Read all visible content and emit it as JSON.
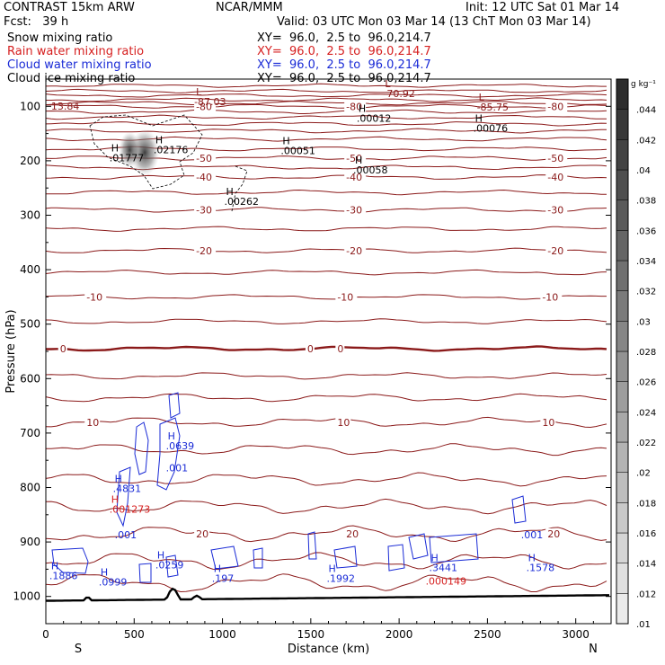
{
  "header": {
    "model": "CONTRAST 15km ARW",
    "center": "NCAR/MMM",
    "init": "Init: 12 UTC Sat 01 Mar 14",
    "fcst": "Fcst:   39 h",
    "valid": "Valid: 03 UTC Mon 03 Mar 14 (13 ChT Mon 03 Mar 14)",
    "fields": [
      {
        "label": "Snow mixing ratio",
        "xy": "XY=  96.0,  2.5 to  96.0,214.7",
        "color": "#000000"
      },
      {
        "label": "Rain water mixing ratio",
        "xy": "XY=  96.0,  2.5 to  96.0,214.7",
        "color": "#d62020"
      },
      {
        "label": "Cloud water mixing ratio",
        "xy": "XY=  96.0,  2.5 to  96.0,214.7",
        "color": "#1a2bd6"
      },
      {
        "label": "Cloud ice mixing ratio",
        "xy": "XY=  96.0,  2.5 to  96.0,214.7",
        "color": "#000000"
      }
    ]
  },
  "chart_data": {
    "type": "contour",
    "xlabel": "Distance (km)",
    "ylabel": "Pressure (hPa)",
    "xlim": [
      0,
      3200
    ],
    "ylim": [
      1050,
      50
    ],
    "x_ticks": [
      0,
      500,
      1000,
      1500,
      2000,
      2500,
      3000
    ],
    "y_ticks": [
      100,
      200,
      300,
      400,
      500,
      600,
      700,
      800,
      900,
      1000
    ],
    "x_end_labels": {
      "left": "S",
      "right": "N"
    },
    "temperature_contours": [
      {
        "label": "-80",
        "p": 100
      },
      {
        "label": "-50",
        "p": 195
      },
      {
        "label": "-40",
        "p": 230
      },
      {
        "label": "-30",
        "p": 290
      },
      {
        "label": "-20",
        "p": 365
      },
      {
        "label": "-10",
        "p": 450
      },
      {
        "label": "0",
        "p": 545
      },
      {
        "label": "10",
        "p": 680
      },
      {
        "label": "20",
        "p": 885
      }
    ],
    "extrema_labels": [
      {
        "kind": "L",
        "value": "-87.03",
        "x": 850,
        "p": 80,
        "color": "#8b1a1a"
      },
      {
        "kind": "L",
        "value": "-70.92",
        "x": 1920,
        "p": 65,
        "color": "#8b1a1a"
      },
      {
        "kind": "L",
        "value": "-85.75",
        "x": 2450,
        "p": 90,
        "color": "#8b1a1a"
      },
      {
        "kind": "",
        "value": "13.84",
        "x": 40,
        "p": 88,
        "color": "#8b1a1a"
      },
      {
        "kind": "H",
        "value": ".00012",
        "x": 1770,
        "p": 110,
        "color": "#000000"
      },
      {
        "kind": "H",
        "value": ".00076",
        "x": 2430,
        "p": 128,
        "color": "#000000"
      },
      {
        "kind": "H",
        "value": ".00051",
        "x": 1340,
        "p": 170,
        "color": "#000000"
      },
      {
        "kind": "H",
        "value": ".00058",
        "x": 1750,
        "p": 205,
        "color": "#000000"
      },
      {
        "kind": "H",
        "value": ".02176",
        "x": 620,
        "p": 168,
        "color": "#000000"
      },
      {
        "kind": "H",
        "value": ".01777",
        "x": 370,
        "p": 183,
        "color": "#000000"
      },
      {
        "kind": "H",
        "value": ".00262",
        "x": 1020,
        "p": 263,
        "color": "#000000"
      },
      {
        "kind": "H",
        "value": ".0639",
        "x": 690,
        "p": 712,
        "color": "#1a2bd6"
      },
      {
        "kind": "",
        "value": ".001",
        "x": 690,
        "p": 752,
        "color": "#1a2bd6"
      },
      {
        "kind": "H",
        "value": ".4831",
        "x": 390,
        "p": 790,
        "color": "#1a2bd6"
      },
      {
        "kind": "H",
        "value": ".001273",
        "x": 370,
        "p": 828,
        "color": "#d62020"
      },
      {
        "kind": "",
        "value": ".001",
        "x": 400,
        "p": 875,
        "color": "#1a2bd6"
      },
      {
        "kind": "H",
        "value": ".0259",
        "x": 630,
        "p": 930,
        "color": "#1a2bd6"
      },
      {
        "kind": "H",
        "value": ".1886",
        "x": 30,
        "p": 950,
        "color": "#1a2bd6"
      },
      {
        "kind": "H",
        "value": ".0999",
        "x": 310,
        "p": 962,
        "color": "#1a2bd6"
      },
      {
        "kind": "H",
        "value": ".197",
        "x": 950,
        "p": 955,
        "color": "#1a2bd6"
      },
      {
        "kind": "H",
        "value": ".1992",
        "x": 1600,
        "p": 955,
        "color": "#1a2bd6"
      },
      {
        "kind": "H",
        "value": ".3441",
        "x": 2180,
        "p": 935,
        "color": "#1a2bd6"
      },
      {
        "kind": "",
        "value": ".000149",
        "x": 2160,
        "p": 960,
        "color": "#d62020"
      },
      {
        "kind": "",
        "value": ".001",
        "x": 2700,
        "p": 875,
        "color": "#1a2bd6"
      },
      {
        "kind": "H",
        "value": ".1578",
        "x": 2730,
        "p": 935,
        "color": "#1a2bd6"
      }
    ],
    "grayscale_legend": {
      "unit": "g kg⁻¹",
      "levels": [
        ".01",
        ".012",
        ".014",
        ".016",
        ".018",
        ".02",
        ".022",
        ".024",
        ".026",
        ".028",
        ".03",
        ".032",
        ".034",
        ".036",
        ".038",
        ".04",
        ".042",
        ".044"
      ]
    }
  },
  "colors": {
    "temperature": "#8b1a1a",
    "cloud_water": "#1a2bd6",
    "rain": "#d62020",
    "terrain": "#000000"
  }
}
